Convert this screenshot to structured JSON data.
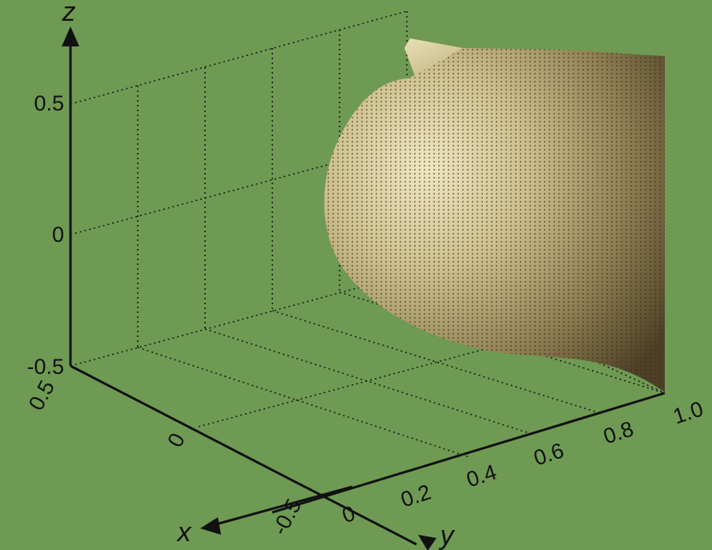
{
  "chart_data": {
    "type": "scatter3d",
    "title": "",
    "axes": {
      "x": {
        "label": "x",
        "ticks": [
          "0.5",
          "0",
          "-0.5"
        ],
        "range": [
          -0.5,
          0.5
        ]
      },
      "y": {
        "label": "y",
        "ticks": [
          "0",
          "0.2",
          "0.4",
          "0.6",
          "0.8",
          "1.0"
        ],
        "range": [
          0,
          1.0
        ]
      },
      "z": {
        "label": "z",
        "ticks": [
          "0.5",
          "0",
          "-0.5"
        ],
        "range": [
          -0.5,
          0.5
        ]
      }
    },
    "grid": true,
    "series": [
      {
        "shape": "half-ellipsoid point cloud",
        "color": "#d9cfa0",
        "shade_color": "#5a4a2a",
        "y_extent": [
          0.34,
          1.0
        ],
        "z_extent": [
          -0.45,
          0.5
        ]
      }
    ]
  }
}
